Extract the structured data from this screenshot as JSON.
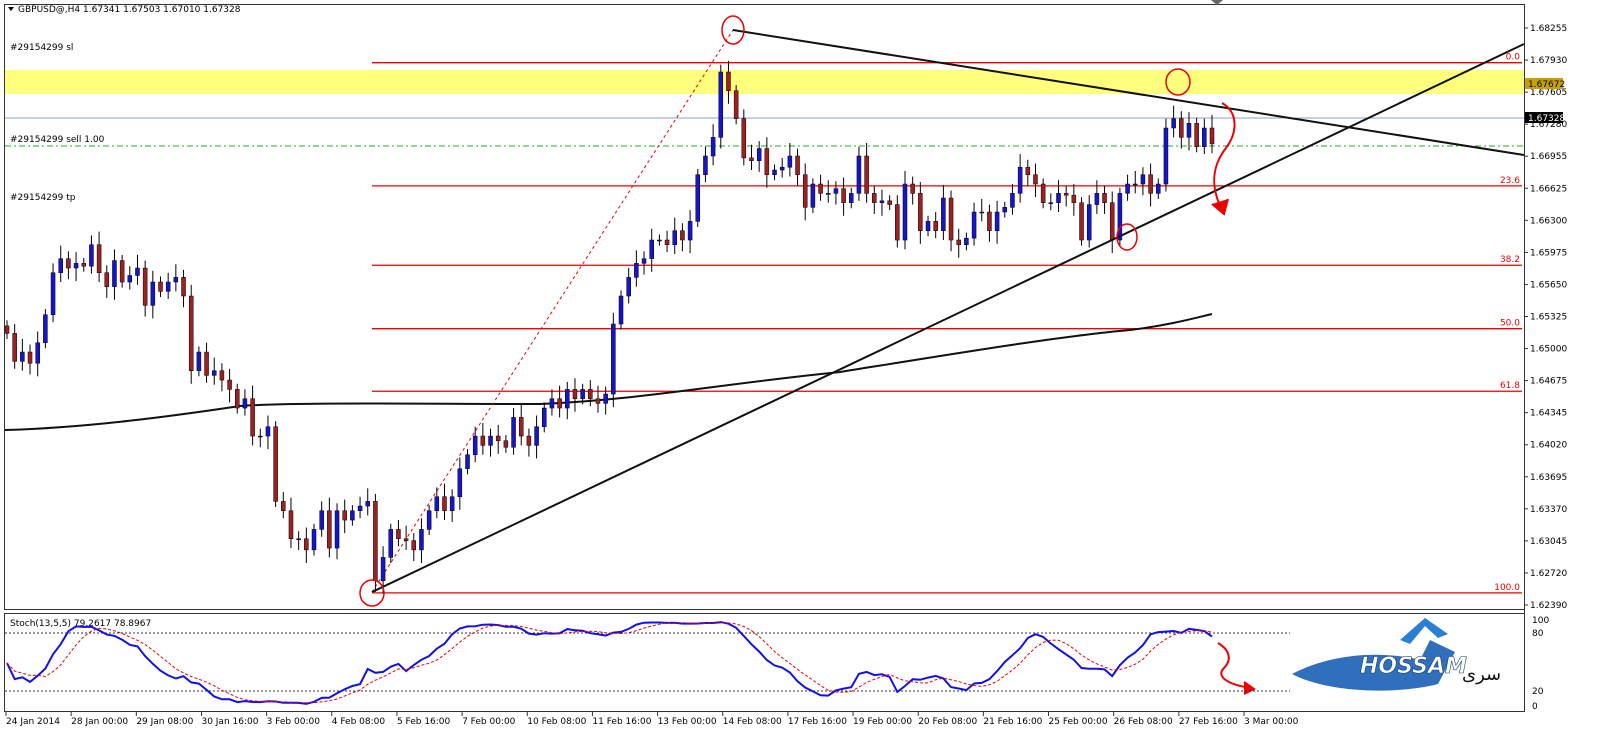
{
  "header": {
    "symbol_line": "GBPUSD@,H4  1.67341 1.67503 1.67010 1.67328"
  },
  "orders": {
    "sl": "#29154299 sl",
    "sell": "#29154299 sell 1.00",
    "tp": "#29154299 tp"
  },
  "indicator": {
    "label": "Stoch(13,5,5) 79.2617 78.8967",
    "levels": [
      "100",
      "80",
      "20",
      "0"
    ]
  },
  "logo": {
    "text": "HOSSAM",
    "arabic": "سرى"
  },
  "price_tags": {
    "highlight": "1.67672",
    "current": "1.67328"
  },
  "chart_data": {
    "type": "candlestick",
    "symbol": "GBPUSD@",
    "timeframe": "H4",
    "ylim": [
      1.6239,
      1.6855
    ],
    "y_ticks": [
      "1.68255",
      "1.67930",
      "1.67605",
      "1.67280",
      "1.66955",
      "1.66625",
      "1.66300",
      "1.65975",
      "1.65650",
      "1.65325",
      "1.65000",
      "1.64675",
      "1.64345",
      "1.64020",
      "1.63695",
      "1.63370",
      "1.63045",
      "1.62720",
      "1.62390"
    ],
    "x_ticks": [
      "24 Jan 2014",
      "28 Jan 00:00",
      "29 Jan 08:00",
      "30 Jan 16:00",
      "3 Feb 00:00",
      "4 Feb 08:00",
      "5 Feb 16:00",
      "7 Feb 00:00",
      "10 Feb 08:00",
      "11 Feb 16:00",
      "13 Feb 00:00",
      "14 Feb 08:00",
      "17 Feb 16:00",
      "19 Feb 00:00",
      "20 Feb 08:00",
      "21 Feb 16:00",
      "25 Feb 00:00",
      "26 Feb 08:00",
      "27 Feb 16:00",
      "3 Mar 00:00"
    ],
    "fibonacci": [
      {
        "level": "0.0",
        "price": 1.682
      },
      {
        "level": "23.6",
        "price": 1.6688
      },
      {
        "level": "38.2",
        "price": 1.6603
      },
      {
        "level": "50.0",
        "price": 1.6535
      },
      {
        "level": "61.8",
        "price": 1.6468
      },
      {
        "level": "100.0",
        "price": 1.6252
      }
    ],
    "close": [
      1.653,
      1.65,
      1.651,
      1.6498,
      1.652,
      1.655,
      1.6595,
      1.661,
      1.66,
      1.6605,
      1.6602,
      1.6625,
      1.6595,
      1.658,
      1.6608,
      1.6585,
      1.6592,
      1.66,
      1.656,
      1.6585,
      1.6575,
      1.6585,
      1.659,
      1.657,
      1.649,
      1.651,
      1.6485,
      1.649,
      1.648,
      1.647,
      1.645,
      1.646,
      1.642,
      1.642,
      1.643,
      1.635,
      1.634,
      1.631,
      1.631,
      1.6298,
      1.632,
      1.634,
      1.63,
      1.634,
      1.633,
      1.634,
      1.6345,
      1.635,
      1.6265,
      1.629,
      1.632,
      1.631,
      1.6308,
      1.6298,
      1.632,
      1.634,
      1.6355,
      1.634,
      1.6355,
      1.6385,
      1.64,
      1.642,
      1.641,
      1.642,
      1.6415,
      1.6408,
      1.644,
      1.642,
      1.641,
      1.643,
      1.645,
      1.646,
      1.645,
      1.647,
      1.646,
      1.647,
      1.646,
      1.6455,
      1.6465,
      1.654,
      1.657,
      1.659,
      1.6605,
      1.661,
      1.663,
      1.663,
      1.6625,
      1.664,
      1.663,
      1.665,
      1.67,
      1.672,
      1.674,
      1.681,
      1.679,
      1.676,
      1.6718,
      1.6715,
      1.6728,
      1.67,
      1.6705,
      1.6708,
      1.672,
      1.67,
      1.6665,
      1.669,
      1.668,
      1.668,
      1.6685,
      1.667,
      1.668,
      1.672,
      1.668,
      1.667,
      1.6672,
      1.6668,
      1.663,
      1.669,
      1.668,
      1.664,
      1.665,
      1.664,
      1.6675,
      1.663,
      1.6625,
      1.6632,
      1.666,
      1.666,
      1.664,
      1.666,
      1.6665,
      1.668,
      1.6708,
      1.67,
      1.669,
      1.667,
      1.667,
      1.668,
      1.6678,
      1.667,
      1.663,
      1.6668,
      1.668,
      1.667,
      1.663,
      1.668,
      1.669,
      1.669,
      1.67,
      1.668,
      1.669,
      1.675,
      1.676,
      1.674,
      1.6755,
      1.673,
      1.675,
      1.6733
    ],
    "annotations": [
      "circle at swing low 4 Feb",
      "circle at high 14 Feb",
      "circle at trendline touch 26 Feb",
      "circle at resistance 27 Feb"
    ]
  }
}
